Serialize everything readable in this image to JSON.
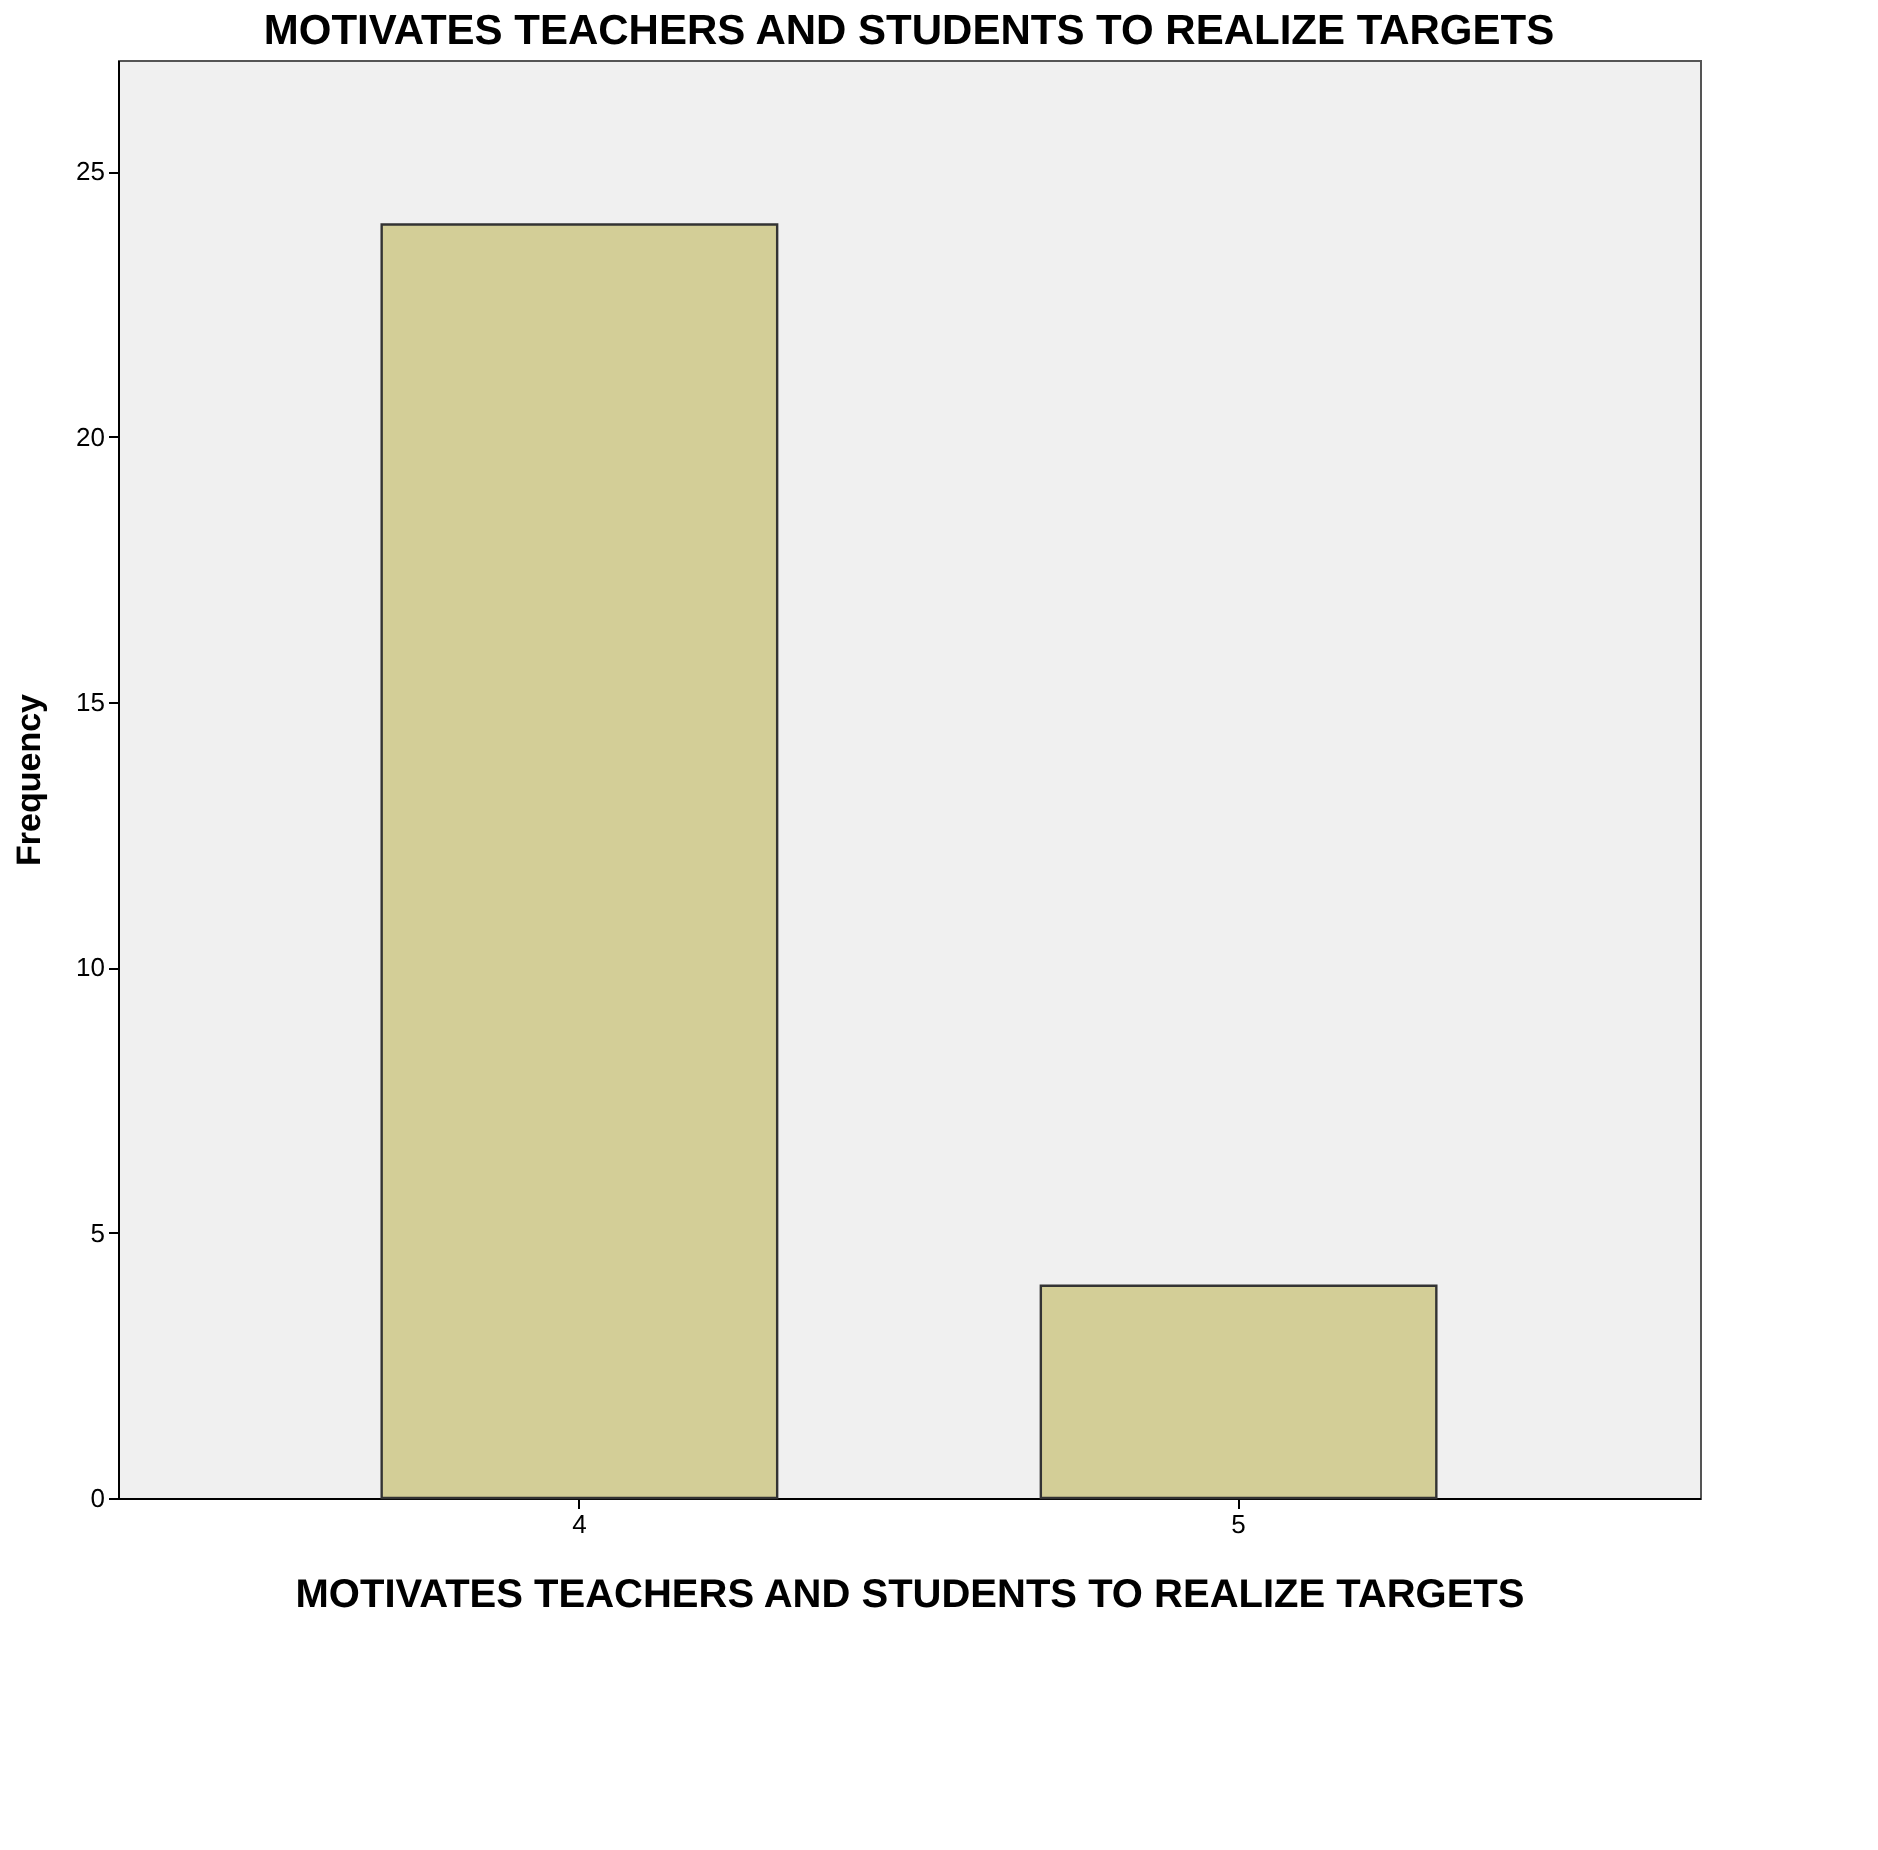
{
  "chart_data": {
    "type": "bar",
    "title": "MOTIVATES TEACHERS AND STUDENTS TO REALIZE TARGETS",
    "xlabel": "MOTIVATES TEACHERS AND STUDENTS TO REALIZE TARGETS",
    "ylabel": "Frequency",
    "categories": [
      "4",
      "5"
    ],
    "values": [
      24,
      4
    ],
    "color": "#d3ce97",
    "ylim": [
      0,
      27.1
    ],
    "yticks": [
      0,
      5,
      10,
      15,
      20,
      25
    ],
    "grid": false
  }
}
